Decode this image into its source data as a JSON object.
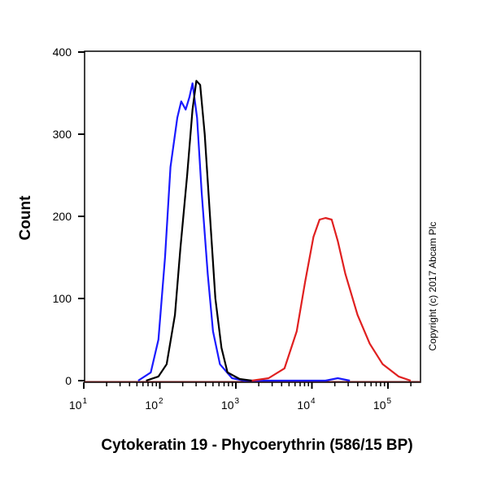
{
  "chart_data": {
    "type": "line",
    "xlabel": "Cytokeratin 19 - Phycoerythrin (586/15 BP)",
    "ylabel": "Count",
    "x_scale": "log10",
    "xlim": [
      10,
      260000
    ],
    "ylim": [
      0,
      400
    ],
    "x_ticks": [
      10,
      100,
      1000,
      10000,
      100000
    ],
    "x_tick_labels": [
      {
        "base": "10",
        "exp": "1"
      },
      {
        "base": "10",
        "exp": "2"
      },
      {
        "base": "10",
        "exp": "3"
      },
      {
        "base": "10",
        "exp": "4"
      },
      {
        "base": "10",
        "exp": "5"
      }
    ],
    "y_ticks": [
      0,
      100,
      200,
      300,
      400
    ],
    "grid": false,
    "annotation": "Copyright (c) 2017 Abcam Plc",
    "series": [
      {
        "color": "#1a1aff",
        "x": [
          52,
          76,
          96,
          117,
          138,
          170,
          191,
          219,
          245,
          269,
          309,
          355,
          427,
          501,
          617,
          891,
          1288,
          15100,
          21900,
          31600
        ],
        "y": [
          0,
          10,
          50,
          150,
          260,
          320,
          340,
          330,
          345,
          362,
          320,
          230,
          130,
          60,
          20,
          3,
          0,
          0,
          3,
          0
        ]
      },
      {
        "color": "#000000",
        "x": [
          66,
          96,
          123,
          158,
          186,
          229,
          269,
          302,
          339,
          389,
          457,
          537,
          646,
          776,
          1122,
          1622
        ],
        "y": [
          0,
          5,
          20,
          80,
          160,
          250,
          330,
          365,
          360,
          300,
          200,
          100,
          40,
          10,
          2,
          0
        ]
      },
      {
        "color": "#e02020",
        "x": [
          1622,
          2692,
          4365,
          6310,
          8128,
          10470,
          12590,
          15140,
          18200,
          21880,
          27540,
          39810,
          57540,
          85110,
          138000,
          199500
        ],
        "y": [
          0,
          3,
          15,
          60,
          120,
          175,
          196,
          198,
          196,
          170,
          130,
          80,
          45,
          20,
          5,
          0
        ]
      }
    ]
  }
}
